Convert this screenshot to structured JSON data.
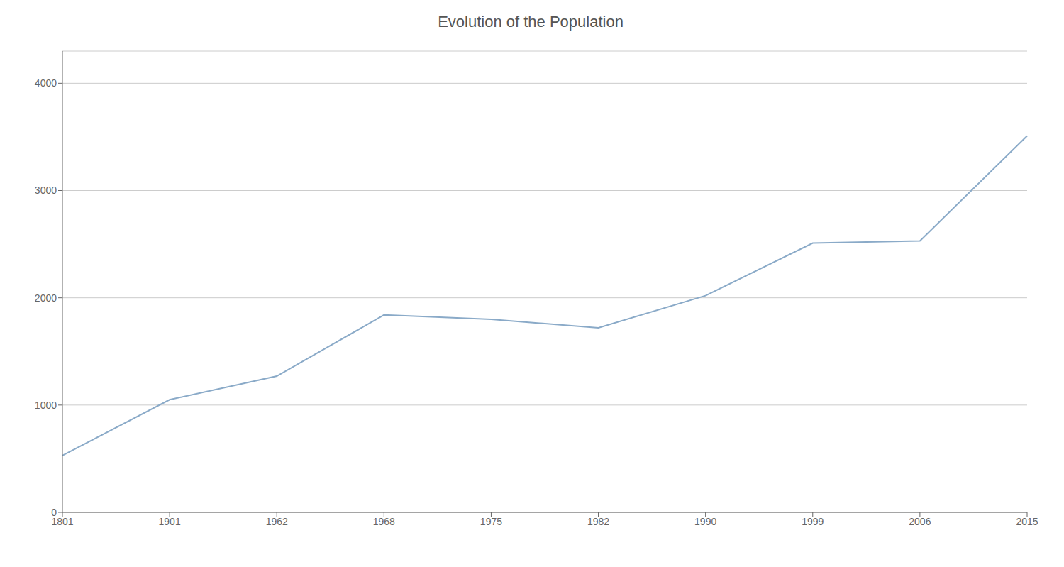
{
  "chart_data": {
    "type": "line",
    "title": "Evolution of the Population",
    "categories": [
      "1801",
      "1901",
      "1962",
      "1968",
      "1975",
      "1982",
      "1990",
      "1999",
      "2006",
      "2015"
    ],
    "values": [
      530,
      1050,
      1270,
      1840,
      1800,
      1720,
      2020,
      2510,
      2530,
      3510
    ],
    "color": "#8AAAC8",
    "ylim": [
      0,
      4300
    ],
    "yticks": [
      0,
      1000,
      2000,
      3000,
      4000
    ],
    "grid": true
  }
}
